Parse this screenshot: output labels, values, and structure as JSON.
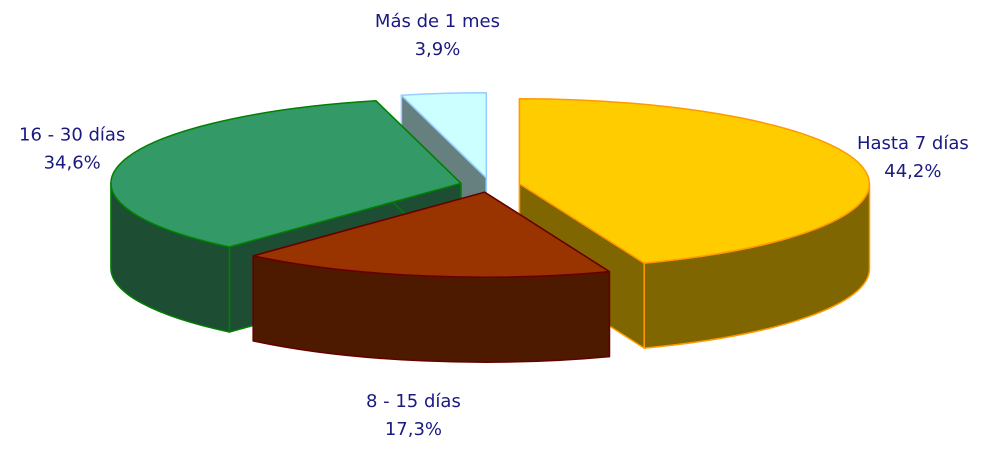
{
  "chart_data": {
    "type": "pie",
    "categories": [
      "Hasta 7 días",
      "8 - 15 días",
      "16 - 30 días",
      "Más de 1 mes"
    ],
    "values": [
      44.2,
      17.3,
      34.6,
      3.9
    ],
    "value_labels": [
      "44,2%",
      "17,3%",
      "34,6%",
      "3,9%"
    ],
    "colors": [
      "#ffcc00",
      "#993300",
      "#339966",
      "#ccffff"
    ],
    "side_colors": [
      "#806600",
      "#4d1a00",
      "#1d4d33",
      "#668080"
    ],
    "edge_colors": [
      "#ff9900",
      "#660000",
      "#008000",
      "#99ccff"
    ]
  }
}
